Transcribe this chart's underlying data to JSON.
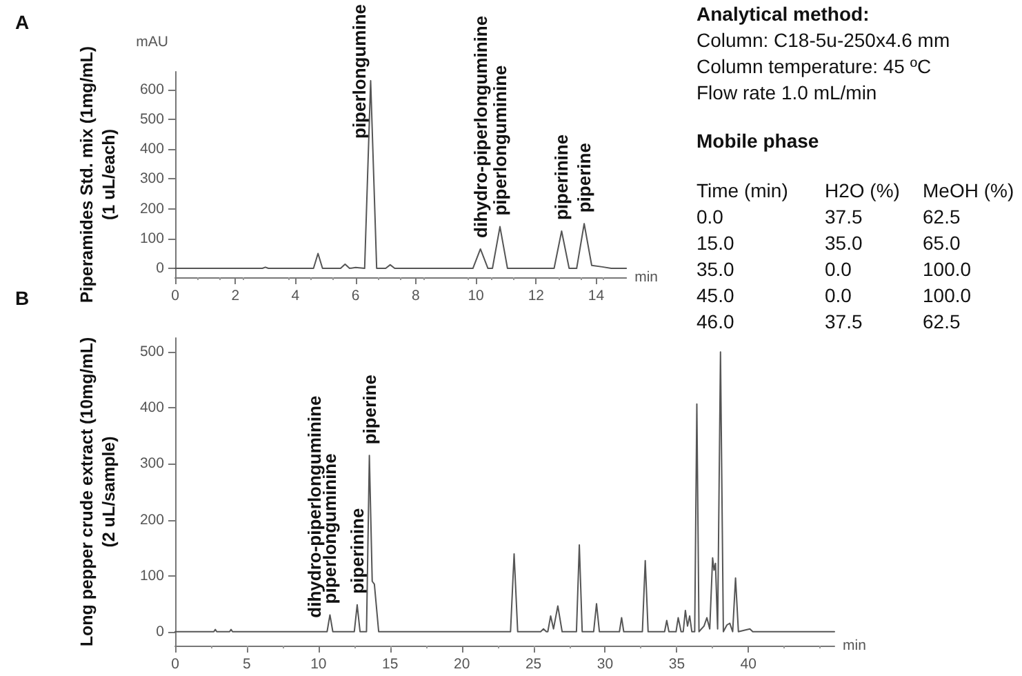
{
  "chart_data": [
    {
      "type": "line",
      "title": "A",
      "ylabel": "Piperamides Std. mix (1mg/mL)\n(1 uL/each)",
      "xlabel": "min",
      "color": "#555555",
      "marker": "none",
      "xlim": [
        0,
        15
      ],
      "xticks": [
        0,
        2,
        4,
        6,
        8,
        10,
        12,
        14
      ],
      "ylim": [
        -30,
        660
      ],
      "yticks": [
        0,
        100,
        200,
        300,
        400,
        500,
        600
      ],
      "x": [
        0,
        2.9,
        3,
        3.1,
        4.6,
        4.75,
        4.9,
        5.5,
        5.65,
        5.8,
        6.0,
        6.3,
        6.5,
        6.7,
        7.0,
        7.15,
        7.3,
        9.9,
        10.15,
        10.4,
        10.55,
        10.8,
        11.05,
        12.6,
        12.85,
        13.1,
        13.35,
        13.6,
        13.85,
        14.2,
        14.5,
        15
      ],
      "values": [
        0,
        0,
        4,
        0,
        0,
        50,
        0,
        0,
        14,
        0,
        3,
        0,
        630,
        0,
        0,
        12,
        0,
        0,
        65,
        0,
        0,
        140,
        0,
        0,
        125,
        0,
        0,
        150,
        10,
        5,
        0,
        0
      ],
      "annotations": [
        "mAU",
        {
          "text": "piperlongumine",
          "x": 6.5,
          "y": 630
        },
        {
          "text": "dihydro-piperlonguminine",
          "x": 10.15,
          "y": 65
        },
        {
          "text": "piperlonguminine",
          "x": 10.8,
          "y": 140
        },
        {
          "text": "piperinine",
          "x": 12.85,
          "y": 125
        },
        {
          "text": "piperine",
          "x": 13.6,
          "y": 150
        }
      ]
    },
    {
      "type": "line",
      "title": "B",
      "ylabel": "Long pepper crude extract (10mg/mL)\n(2 uL/sample)",
      "xlabel": "min",
      "color": "#555555",
      "marker": "none",
      "xlim": [
        0,
        46
      ],
      "xticks": [
        0,
        5,
        10,
        15,
        20,
        25,
        30,
        35,
        40
      ],
      "ylim": [
        -25,
        525
      ],
      "yticks": [
        0,
        100,
        200,
        300,
        400,
        500
      ],
      "x": [
        0,
        2.7,
        2.8,
        2.9,
        3.8,
        3.9,
        4.0,
        10.6,
        10.8,
        11.0,
        12.5,
        12.7,
        12.9,
        13.35,
        13.55,
        13.75,
        13.9,
        14.2,
        23.4,
        23.65,
        23.9,
        25.5,
        25.7,
        25.9,
        26.0,
        26.2,
        26.4,
        26.7,
        27.0,
        28.0,
        28.2,
        28.4,
        29.2,
        29.4,
        29.6,
        31.0,
        31.15,
        31.3,
        32.6,
        32.8,
        33.0,
        34.15,
        34.3,
        34.45,
        34.95,
        35.1,
        35.3,
        35.45,
        35.6,
        35.75,
        35.9,
        36.05,
        36.25,
        36.4,
        36.55,
        36.9,
        37.1,
        37.3,
        37.5,
        37.6,
        37.7,
        37.85,
        38.05,
        38.25,
        38.5,
        38.7,
        38.9,
        39.1,
        39.3,
        40.1,
        40.3,
        46
      ],
      "values": [
        0,
        0,
        4,
        0,
        0,
        4,
        0,
        0,
        30,
        0,
        0,
        48,
        0,
        0,
        315,
        90,
        85,
        0,
        0,
        139,
        0,
        0,
        5,
        0,
        0,
        28,
        5,
        46,
        0,
        0,
        155,
        0,
        0,
        50,
        0,
        0,
        25,
        0,
        0,
        127,
        0,
        0,
        20,
        0,
        0,
        25,
        0,
        0,
        38,
        10,
        28,
        0,
        0,
        407,
        0,
        10,
        25,
        5,
        132,
        110,
        122,
        5,
        500,
        0,
        12,
        15,
        0,
        96,
        0,
        5,
        0,
        0
      ],
      "annotations": [
        {
          "text": "dihydro-piperlonguminine",
          "x": 9.7,
          "y": 5
        },
        {
          "text": "piperlonguminine",
          "x": 10.8,
          "y": 30
        },
        {
          "text": "piperinine",
          "x": 12.7,
          "y": 48
        },
        {
          "text": "piperine",
          "x": 13.55,
          "y": 315
        }
      ]
    },
    {
      "type": "other",
      "title": "Analytical method:",
      "annotations": [
        "Column: C18-5u-250x4.6 mm",
        "Column temperature: 45 ºC",
        "Flow rate 1.0 mL/min",
        "Mobile phase",
        "Time (min)",
        "H2O (%)",
        "MeOH (%)",
        "0.0",
        "37.5",
        "62.5",
        "15.0",
        "35.0",
        "65.0",
        "35.0",
        "0.0",
        "100.0",
        "45.0",
        "0.0",
        "100.0",
        "46.0",
        "37.5",
        "62.5"
      ]
    }
  ]
}
